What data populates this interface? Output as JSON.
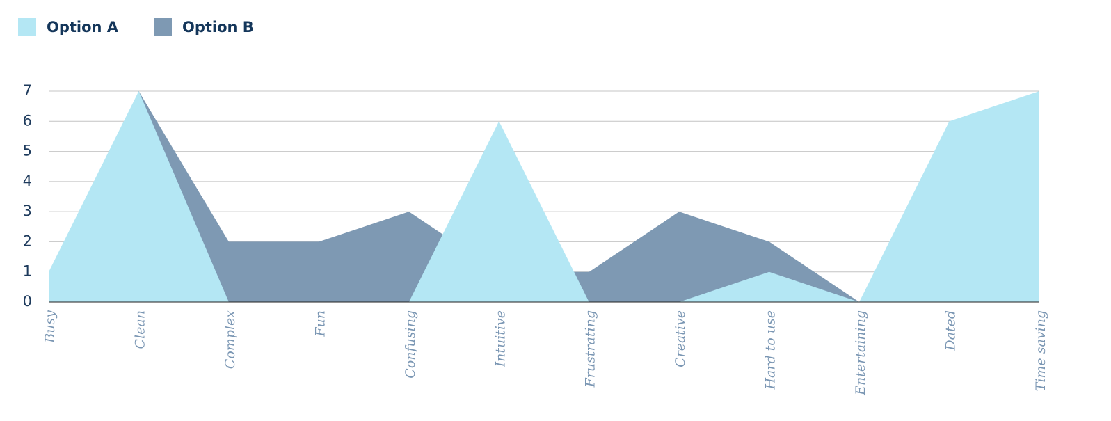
{
  "chart_data": {
    "type": "area",
    "categories": [
      "Busy",
      "Clean",
      "Complex",
      "Fun",
      "Confusing",
      "Intuitive",
      "Frustrating",
      "Creative",
      "Hard to use",
      "Entertaining",
      "Dated",
      "Time saving"
    ],
    "series": [
      {
        "name": "Option B",
        "color": "#7e99b3",
        "values": [
          0,
          7,
          2,
          2,
          3,
          1,
          1,
          3,
          2,
          0,
          0,
          0
        ]
      },
      {
        "name": "Option A",
        "color": "#b4e7f4",
        "values": [
          1,
          7,
          0,
          0,
          0,
          6,
          0,
          0,
          1,
          0,
          6,
          7
        ]
      }
    ],
    "legend_order": [
      "Option A",
      "Option B"
    ],
    "ylim": [
      0,
      7
    ],
    "yticks": [
      0,
      1,
      2,
      3,
      4,
      5,
      6,
      7
    ],
    "grid": true
  }
}
